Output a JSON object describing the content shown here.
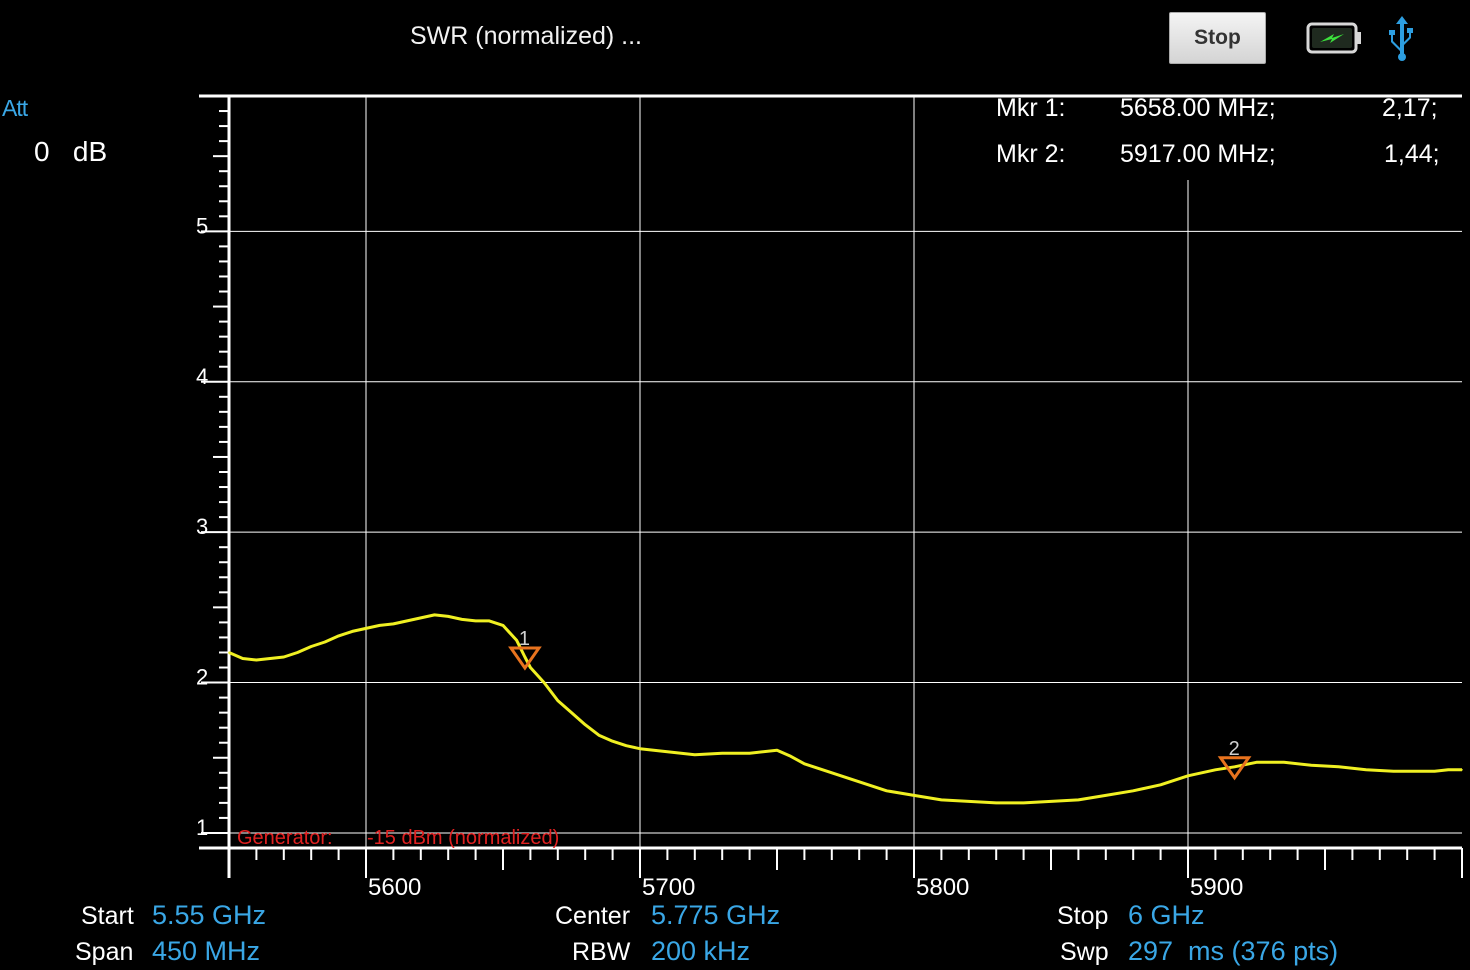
{
  "header": {
    "title": "SWR (normalized) ...",
    "stop_button_label": "Stop",
    "battery_icon": "battery-charging-icon",
    "usb_icon": "usb-icon"
  },
  "attenuation": {
    "label": "Att",
    "value": "0",
    "unit": "dB"
  },
  "markers": [
    {
      "label": "Mkr 1:",
      "frequency": "5658.00 MHz;",
      "value": "2,17;"
    },
    {
      "label": "Mkr 2:",
      "frequency": "5917.00 MHz;",
      "value": "1,44;"
    }
  ],
  "generator": {
    "label": "Generator:",
    "value": "-15 dBm (normalized)"
  },
  "footer": {
    "start_label": "Start",
    "start_value": "5.55 GHz",
    "span_label": "Span",
    "span_value": "450 MHz",
    "center_label": "Center",
    "center_value": "5.775 GHz",
    "rbw_label": "RBW",
    "rbw_value": "200 kHz",
    "stop_label": "Stop",
    "stop_value": "6 GHz",
    "swp_label": "Swp",
    "swp_value": "297  ms (376 pts)"
  },
  "colors": {
    "trace": "#f0f022",
    "marker": "#e8731e",
    "grid": "#ffffff",
    "accent": "#3aa7e6",
    "generator_text": "#e02020"
  },
  "chart_data": {
    "type": "line",
    "title": "SWR (normalized) ...",
    "xlabel": "",
    "ylabel": "",
    "xlim": [
      5550,
      6000
    ],
    "ylim": [
      0.9,
      5.9
    ],
    "x_ticks": [
      5600,
      5700,
      5800,
      5900
    ],
    "y_ticks": [
      1,
      2,
      3,
      4,
      5
    ],
    "grid": true,
    "series": [
      {
        "x": [
          5550,
          5555,
          5560,
          5565,
          5570,
          5575,
          5580,
          5585,
          5590,
          5595,
          5600,
          5605,
          5610,
          5615,
          5620,
          5625,
          5630,
          5635,
          5640,
          5645,
          5650,
          5655,
          5658,
          5660,
          5665,
          5670,
          5675,
          5680,
          5685,
          5690,
          5695,
          5700,
          5710,
          5720,
          5730,
          5740,
          5750,
          5755,
          5760,
          5770,
          5780,
          5790,
          5800,
          5810,
          5820,
          5830,
          5840,
          5850,
          5860,
          5870,
          5880,
          5890,
          5900,
          5910,
          5917,
          5925,
          5935,
          5945,
          5955,
          5965,
          5975,
          5985,
          5990,
          5995,
          6000
        ],
        "y": [
          2.2,
          2.16,
          2.15,
          2.16,
          2.17,
          2.2,
          2.24,
          2.27,
          2.31,
          2.34,
          2.36,
          2.38,
          2.39,
          2.41,
          2.43,
          2.45,
          2.44,
          2.42,
          2.41,
          2.41,
          2.38,
          2.28,
          2.17,
          2.1,
          2.0,
          1.88,
          1.8,
          1.72,
          1.65,
          1.61,
          1.58,
          1.56,
          1.54,
          1.52,
          1.53,
          1.53,
          1.55,
          1.51,
          1.46,
          1.4,
          1.34,
          1.28,
          1.25,
          1.22,
          1.21,
          1.2,
          1.2,
          1.21,
          1.22,
          1.25,
          1.28,
          1.32,
          1.38,
          1.42,
          1.44,
          1.47,
          1.47,
          1.45,
          1.44,
          1.42,
          1.41,
          1.41,
          1.41,
          1.42,
          1.42
        ]
      }
    ],
    "markers": [
      {
        "id": "1",
        "x": 5658,
        "y": 2.17
      },
      {
        "id": "2",
        "x": 5917,
        "y": 1.44
      }
    ]
  }
}
